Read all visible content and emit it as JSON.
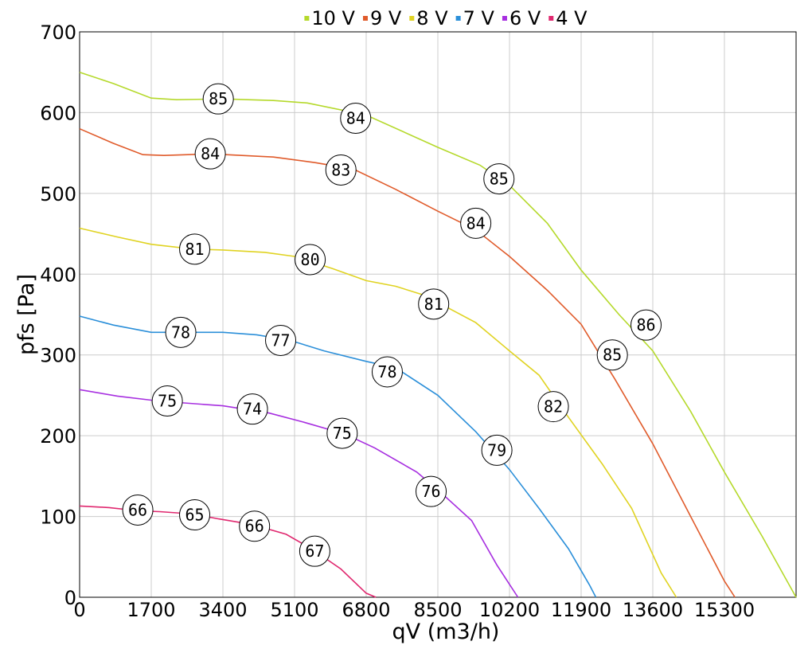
{
  "chart_data": {
    "type": "line",
    "title": "",
    "xlabel": "qV (m3/h)",
    "ylabel": "pfs [Pa]",
    "xlim": [
      0,
      17000
    ],
    "ylim": [
      0,
      700
    ],
    "x_ticks": [
      0,
      1700,
      3400,
      5100,
      6800,
      8500,
      10200,
      11900,
      13600,
      15300
    ],
    "y_ticks": [
      0,
      100,
      200,
      300,
      400,
      500,
      600,
      700
    ],
    "grid": true,
    "legend_position": "top-center",
    "series": [
      {
        "name": "10 V",
        "color": "#b5d92b",
        "points": [
          [
            0,
            650
          ],
          [
            800,
            636
          ],
          [
            1700,
            618
          ],
          [
            2300,
            616
          ],
          [
            3400,
            617
          ],
          [
            4600,
            615
          ],
          [
            5400,
            612
          ],
          [
            6800,
            597
          ],
          [
            8500,
            557
          ],
          [
            9500,
            535
          ],
          [
            10200,
            510
          ],
          [
            11100,
            463
          ],
          [
            11900,
            405
          ],
          [
            12800,
            350
          ],
          [
            13600,
            305
          ],
          [
            14500,
            230
          ],
          [
            15300,
            155
          ],
          [
            16200,
            75
          ],
          [
            17000,
            0
          ]
        ],
        "markers": [
          {
            "x": 3290,
            "y": 617,
            "label": "85"
          },
          {
            "x": 6550,
            "y": 593,
            "label": "84"
          },
          {
            "x": 9950,
            "y": 518,
            "label": "85"
          },
          {
            "x": 13440,
            "y": 337,
            "label": "86"
          }
        ]
      },
      {
        "name": "9 V",
        "color": "#e05b2b",
        "points": [
          [
            0,
            580
          ],
          [
            800,
            562
          ],
          [
            1500,
            548
          ],
          [
            2000,
            547
          ],
          [
            3100,
            549
          ],
          [
            4600,
            545
          ],
          [
            5600,
            538
          ],
          [
            6500,
            530
          ],
          [
            7500,
            505
          ],
          [
            8500,
            478
          ],
          [
            9400,
            455
          ],
          [
            10200,
            422
          ],
          [
            11100,
            380
          ],
          [
            11900,
            338
          ],
          [
            12700,
            270
          ],
          [
            13600,
            190
          ],
          [
            14500,
            100
          ],
          [
            15300,
            20
          ],
          [
            15550,
            0
          ]
        ],
        "markers": [
          {
            "x": 3100,
            "y": 549,
            "label": "84"
          },
          {
            "x": 6200,
            "y": 529,
            "label": "83"
          },
          {
            "x": 9400,
            "y": 463,
            "label": "84"
          },
          {
            "x": 12640,
            "y": 300,
            "label": "85"
          }
        ]
      },
      {
        "name": "8 V",
        "color": "#e0d322",
        "points": [
          [
            0,
            457
          ],
          [
            900,
            446
          ],
          [
            1700,
            437
          ],
          [
            2700,
            431
          ],
          [
            3400,
            430
          ],
          [
            4400,
            427
          ],
          [
            5100,
            422
          ],
          [
            6000,
            407
          ],
          [
            6800,
            392
          ],
          [
            7500,
            385
          ],
          [
            8300,
            372
          ],
          [
            8500,
            365
          ],
          [
            9400,
            340
          ],
          [
            10200,
            305
          ],
          [
            10900,
            275
          ],
          [
            11500,
            230
          ],
          [
            12400,
            165
          ],
          [
            13100,
            110
          ],
          [
            13800,
            30
          ],
          [
            14160,
            0
          ]
        ],
        "markers": [
          {
            "x": 2730,
            "y": 431,
            "label": "81"
          },
          {
            "x": 5470,
            "y": 418,
            "label": "80"
          },
          {
            "x": 8400,
            "y": 363,
            "label": "81"
          },
          {
            "x": 11240,
            "y": 236,
            "label": "82"
          }
        ]
      },
      {
        "name": "7 V",
        "color": "#2b8fd9",
        "points": [
          [
            0,
            348
          ],
          [
            800,
            337
          ],
          [
            1700,
            328
          ],
          [
            2400,
            328
          ],
          [
            3400,
            328
          ],
          [
            4200,
            325
          ],
          [
            5000,
            318
          ],
          [
            5800,
            305
          ],
          [
            6800,
            292
          ],
          [
            7500,
            284
          ],
          [
            8500,
            250
          ],
          [
            9400,
            205
          ],
          [
            10200,
            158
          ],
          [
            10900,
            110
          ],
          [
            11600,
            60
          ],
          [
            12100,
            15
          ],
          [
            12250,
            0
          ]
        ],
        "markers": [
          {
            "x": 2400,
            "y": 328,
            "label": "78"
          },
          {
            "x": 4770,
            "y": 318,
            "label": "77"
          },
          {
            "x": 7300,
            "y": 279,
            "label": "78"
          },
          {
            "x": 9900,
            "y": 182,
            "label": "79"
          }
        ]
      },
      {
        "name": "6 V",
        "color": "#a72fe0",
        "points": [
          [
            0,
            257
          ],
          [
            900,
            249
          ],
          [
            1700,
            244
          ],
          [
            2100,
            242
          ],
          [
            3400,
            237
          ],
          [
            4500,
            228
          ],
          [
            5300,
            217
          ],
          [
            6300,
            202
          ],
          [
            7000,
            185
          ],
          [
            8000,
            155
          ],
          [
            8500,
            133
          ],
          [
            9300,
            95
          ],
          [
            9900,
            40
          ],
          [
            10400,
            0
          ]
        ],
        "markers": [
          {
            "x": 2080,
            "y": 243,
            "label": "75"
          },
          {
            "x": 4100,
            "y": 233,
            "label": "74"
          },
          {
            "x": 6230,
            "y": 203,
            "label": "75"
          },
          {
            "x": 8340,
            "y": 131,
            "label": "76"
          }
        ]
      },
      {
        "name": "4 V",
        "color": "#e0286f",
        "points": [
          [
            0,
            113
          ],
          [
            700,
            111
          ],
          [
            1400,
            107
          ],
          [
            1900,
            106
          ],
          [
            2700,
            103
          ],
          [
            3300,
            97
          ],
          [
            4100,
            90
          ],
          [
            4900,
            78
          ],
          [
            5500,
            60
          ],
          [
            6200,
            35
          ],
          [
            6800,
            5
          ],
          [
            7030,
            0
          ]
        ],
        "markers": [
          {
            "x": 1380,
            "y": 108,
            "label": "66"
          },
          {
            "x": 2730,
            "y": 102,
            "label": "65"
          },
          {
            "x": 4150,
            "y": 88,
            "label": "66"
          },
          {
            "x": 5580,
            "y": 57,
            "label": "67"
          }
        ]
      }
    ]
  }
}
